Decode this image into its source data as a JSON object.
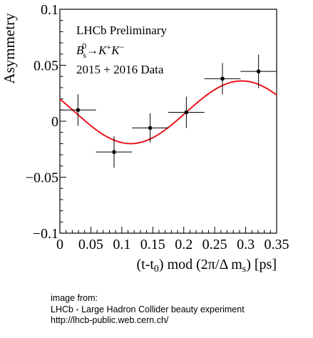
{
  "chart_data": {
    "type": "scatter",
    "xlabel": "(t-t₀) mod (2π/Δ mₛ) [ps]",
    "ylabel": "Asymmetry",
    "xlim": [
      0,
      0.35
    ],
    "ylim": [
      -0.1,
      0.1
    ],
    "x_ticks": [
      "0",
      "0.05",
      "0.1",
      "0.15",
      "0.2",
      "0.25",
      "0.3",
      "0.35"
    ],
    "y_ticks": [
      "−0.1",
      "−0.05",
      "0",
      "0.05",
      "0.1"
    ],
    "grid": false,
    "annotations": [
      "LHCb Preliminary",
      "Bₛ⁰→K⁺K⁻",
      "2015 + 2016 Data"
    ],
    "series": [
      {
        "type": "scatter",
        "points": [
          {
            "x": 0.0292,
            "y": 0.01,
            "xerr": 0.0292,
            "yerr": 0.014
          },
          {
            "x": 0.0875,
            "y": -0.0275,
            "xerr": 0.0292,
            "yerr": 0.014
          },
          {
            "x": 0.1458,
            "y": -0.006,
            "xerr": 0.0292,
            "yerr": 0.013
          },
          {
            "x": 0.2042,
            "y": 0.008,
            "xerr": 0.0292,
            "yerr": 0.014
          },
          {
            "x": 0.2625,
            "y": 0.038,
            "xerr": 0.0292,
            "yerr": 0.014
          },
          {
            "x": 0.3208,
            "y": 0.0445,
            "xerr": 0.0292,
            "yerr": 0.015
          }
        ],
        "color": "#000000"
      },
      {
        "type": "line",
        "fit": {
          "offset": 0.008,
          "amplitude": 0.028,
          "period": 0.3585,
          "phase_x": 0.204
        },
        "color": "#e8141c"
      }
    ]
  },
  "credit": {
    "line1": "image from:",
    "line2": "LHCb - Large Hadron Collider beauty experiment",
    "line3": "http://lhcb-public.web.cern.ch/"
  }
}
